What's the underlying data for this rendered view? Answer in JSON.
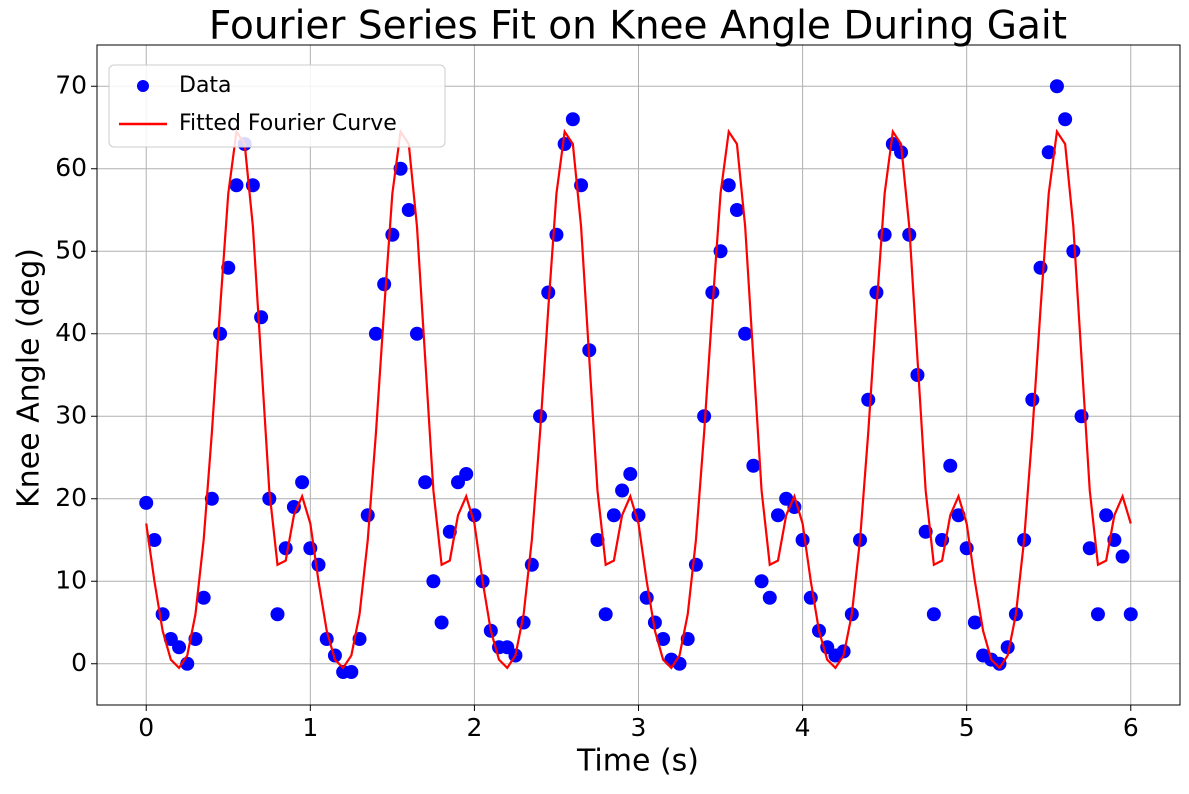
{
  "chart_data": {
    "type": "line",
    "title": "Fourier Series Fit on Knee Angle During Gait",
    "xlabel": "Time (s)",
    "ylabel": "Knee Angle (deg)",
    "x": [
      0,
      0.05,
      0.1,
      0.15,
      0.2,
      0.25,
      0.3,
      0.35,
      0.4,
      0.45,
      0.5,
      0.55,
      0.6,
      0.65,
      0.7,
      0.75,
      0.8,
      0.85,
      0.9,
      0.95,
      1,
      1.05,
      1.1,
      1.15,
      1.2,
      1.25,
      1.3,
      1.35,
      1.4,
      1.45,
      1.5,
      1.55,
      1.6,
      1.65,
      1.7,
      1.75,
      1.8,
      1.85,
      1.9,
      1.95,
      2,
      2.05,
      2.1,
      2.15,
      2.2,
      2.25,
      2.3,
      2.35,
      2.4,
      2.45,
      2.5,
      2.55,
      2.6,
      2.65,
      2.7,
      2.75,
      2.8,
      2.85,
      2.9,
      2.95,
      3,
      3.05,
      3.1,
      3.15,
      3.2,
      3.25,
      3.3,
      3.35,
      3.4,
      3.45,
      3.5,
      3.55,
      3.6,
      3.65,
      3.7,
      3.75,
      3.8,
      3.85,
      3.9,
      3.95,
      4,
      4.05,
      4.1,
      4.15,
      4.2,
      4.25,
      4.3,
      4.35,
      4.4,
      4.45,
      4.5,
      4.55,
      4.6,
      4.65,
      4.7,
      4.75,
      4.8,
      4.85,
      4.9,
      4.95,
      5,
      5.05,
      5.1,
      5.15,
      5.2,
      5.25,
      5.3,
      5.35,
      5.4,
      5.45,
      5.5,
      5.55,
      5.6,
      5.65,
      5.7,
      5.75,
      5.8,
      5.85,
      5.9,
      5.95,
      6
    ],
    "series": [
      {
        "name": "Data",
        "color": "#0000ff",
        "style": "markers",
        "values": [
          19.5,
          15,
          6,
          3,
          2,
          0,
          3,
          8,
          20,
          40,
          48,
          58,
          63,
          58,
          42,
          20,
          6,
          14,
          19,
          22,
          14,
          12,
          3,
          1,
          -1,
          -1,
          3,
          18,
          40,
          46,
          52,
          60,
          55,
          40,
          22,
          10,
          5,
          16,
          22,
          23,
          18,
          10,
          4,
          2,
          2,
          1,
          5,
          12,
          30,
          45,
          52,
          63,
          66,
          58,
          38,
          15,
          6,
          18,
          21,
          23,
          18,
          8,
          5,
          3,
          0.5,
          0,
          3,
          12,
          30,
          45,
          50,
          58,
          55,
          40,
          24,
          10,
          8,
          18,
          20,
          19,
          15,
          8,
          4,
          2,
          1,
          1.5,
          6,
          15,
          32,
          45,
          52,
          63,
          62,
          52,
          35,
          16,
          6,
          15,
          24,
          18,
          14,
          5,
          1,
          0.5,
          0,
          2,
          6,
          15,
          32,
          48,
          62,
          70,
          66,
          50,
          30,
          14,
          6,
          18,
          15,
          13,
          6
        ]
      },
      {
        "name": "Fitted Fourier Curve",
        "color": "#ff0000",
        "style": "line",
        "values": [
          17,
          10,
          4,
          0.5,
          -0.5,
          1,
          6,
          15,
          28,
          43,
          57,
          64.5,
          63,
          53,
          37,
          21,
          12,
          12.5,
          18,
          20.3,
          17,
          10,
          4,
          0.5,
          -0.5,
          1,
          6,
          15,
          28,
          43,
          57,
          64.5,
          63,
          53,
          37,
          21,
          12,
          12.5,
          18,
          20.3,
          17,
          10,
          4,
          0.5,
          -0.5,
          1,
          6,
          15,
          28,
          43,
          57,
          64.5,
          63,
          53,
          37,
          21,
          12,
          12.5,
          18,
          20.3,
          17,
          10,
          4,
          0.5,
          -0.5,
          1,
          6,
          15,
          28,
          43,
          57,
          64.5,
          63,
          53,
          37,
          21,
          12,
          12.5,
          18,
          20.3,
          17,
          10,
          4,
          0.5,
          -0.5,
          1,
          6,
          15,
          28,
          43,
          57,
          64.5,
          63,
          53,
          37,
          21,
          12,
          12.5,
          18,
          20.3,
          17,
          10,
          4,
          0.5,
          -0.5,
          1,
          6,
          15,
          28,
          43,
          57,
          64.5,
          63,
          53,
          37,
          21,
          12,
          12.5,
          18,
          20.3,
          17
        ]
      }
    ],
    "xlim": [
      -0.3,
      6.3
    ],
    "xticks": [
      0,
      1,
      2,
      3,
      4,
      5,
      6
    ],
    "ylim": [
      -5,
      75
    ],
    "yticks": [
      0,
      10,
      20,
      30,
      40,
      50,
      60,
      70
    ],
    "grid": true,
    "legend": "upper left"
  }
}
